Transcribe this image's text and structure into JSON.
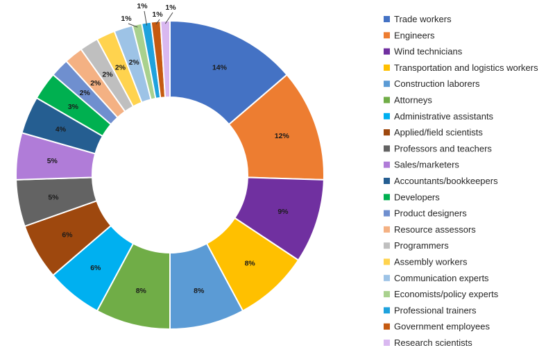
{
  "chart_data": {
    "type": "pie",
    "donut": true,
    "legend_position": "right",
    "slices": [
      {
        "label": "Trade workers",
        "value": 14,
        "display": "14%",
        "color": "#4472C4"
      },
      {
        "label": "Engineers",
        "value": 12,
        "display": "12%",
        "color": "#ED7D31"
      },
      {
        "label": "Wind technicians",
        "value": 9,
        "display": "9%",
        "color": "#7030A0"
      },
      {
        "label": "Transportation and logistics workers",
        "value": 8,
        "display": "8%",
        "color": "#FFC000"
      },
      {
        "label": "Construction laborers",
        "value": 8,
        "display": "8%",
        "color": "#5B9BD5"
      },
      {
        "label": "Attorneys",
        "value": 8,
        "display": "8%",
        "color": "#70AD47"
      },
      {
        "label": "Administrative assistants",
        "value": 6,
        "display": "6%",
        "color": "#00B0F0"
      },
      {
        "label": "Applied/field scientists",
        "value": 6,
        "display": "6%",
        "color": "#9E480E"
      },
      {
        "label": "Professors and teachers",
        "value": 5,
        "display": "5%",
        "color": "#636363"
      },
      {
        "label": "Sales/marketers",
        "value": 5,
        "display": "5%",
        "color": "#B07CD8"
      },
      {
        "label": "Accountants/bookkeepers",
        "value": 4,
        "display": "4%",
        "color": "#255E91"
      },
      {
        "label": "Developers",
        "value": 3,
        "display": "3%",
        "color": "#00B050"
      },
      {
        "label": "Product designers",
        "value": 2,
        "display": "2%",
        "color": "#6F8FCF"
      },
      {
        "label": "Resource assessors",
        "value": 2,
        "display": "2%",
        "color": "#F4B183"
      },
      {
        "label": "Programmers",
        "value": 2,
        "display": "2%",
        "color": "#BFBFBF"
      },
      {
        "label": "Assembly workers",
        "value": 2,
        "display": "2%",
        "color": "#FFD34E"
      },
      {
        "label": "Communication experts",
        "value": 2,
        "display": "2%",
        "color": "#9DC3E6"
      },
      {
        "label": "Economists/policy experts",
        "value": 1,
        "display": "1%",
        "color": "#A9D18E"
      },
      {
        "label": "Professional trainers",
        "value": 1,
        "display": "1%",
        "color": "#1FA2DD"
      },
      {
        "label": "Government employees",
        "value": 1,
        "display": "1%",
        "color": "#C55A11"
      },
      {
        "label": "Research scientists",
        "value": 1,
        "display": "1%",
        "color": "#D9B8F0"
      }
    ]
  }
}
